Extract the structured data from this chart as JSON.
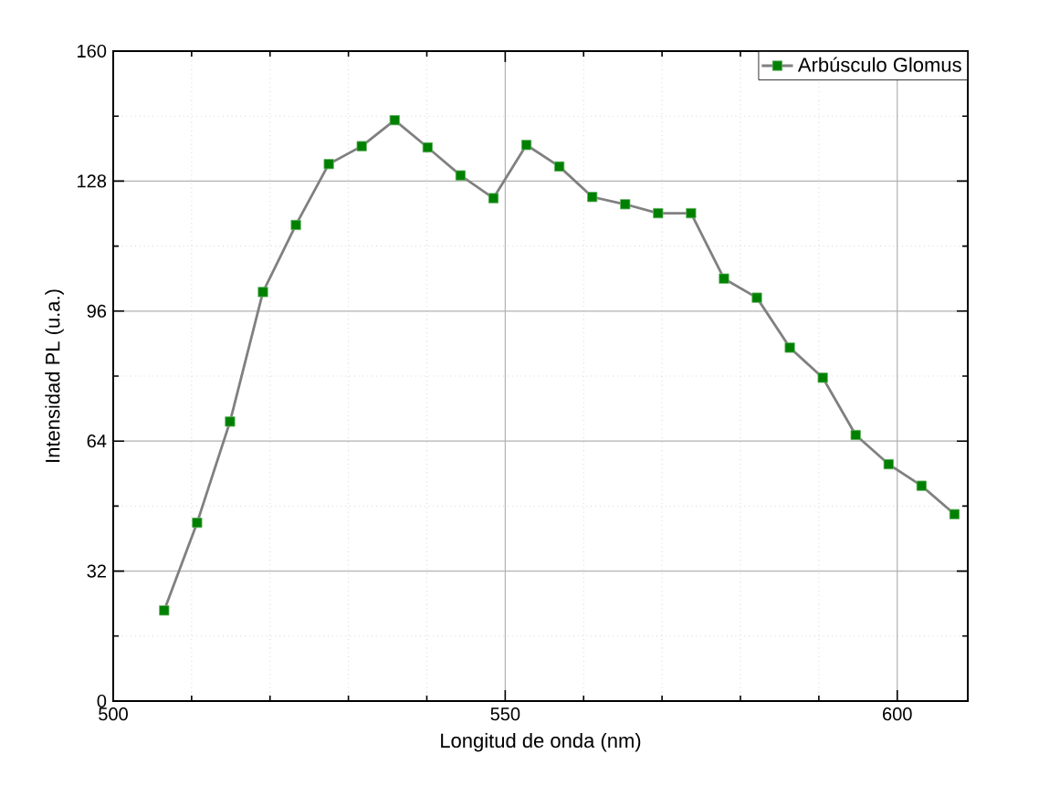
{
  "chart_data": {
    "type": "line",
    "xlabel": "Longitud de onda (nm)",
    "ylabel": "Intensidad PL (u.a.)",
    "xlim": [
      500,
      609
    ],
    "ylim": [
      0,
      160
    ],
    "xticks": [
      500,
      550,
      600
    ],
    "yticks": [
      0,
      32,
      64,
      96,
      128,
      160
    ],
    "grid": true,
    "legend": "top right",
    "marker": "square",
    "line_style": "solid",
    "series": [
      {
        "name": "Arbúsculo Glomus",
        "color": "#008000",
        "x": [
          506.5,
          510.7,
          514.9,
          519.1,
          523.3,
          527.5,
          531.7,
          535.9,
          540.1,
          544.3,
          548.5,
          552.7,
          556.9,
          561.1,
          565.3,
          569.5,
          573.7,
          577.9,
          582.1,
          586.3,
          590.5,
          594.7,
          598.9,
          603.1,
          607.3
        ],
        "values": [
          22.3,
          43.9,
          68.8,
          100.7,
          117.2,
          132.2,
          136.6,
          143.0,
          136.3,
          129.4,
          123.8,
          136.9,
          131.6,
          124.1,
          122.3,
          120.1,
          120.1,
          104.0,
          99.3,
          87.0,
          79.6,
          65.5,
          58.3,
          53.0,
          46.0
        ]
      }
    ]
  }
}
